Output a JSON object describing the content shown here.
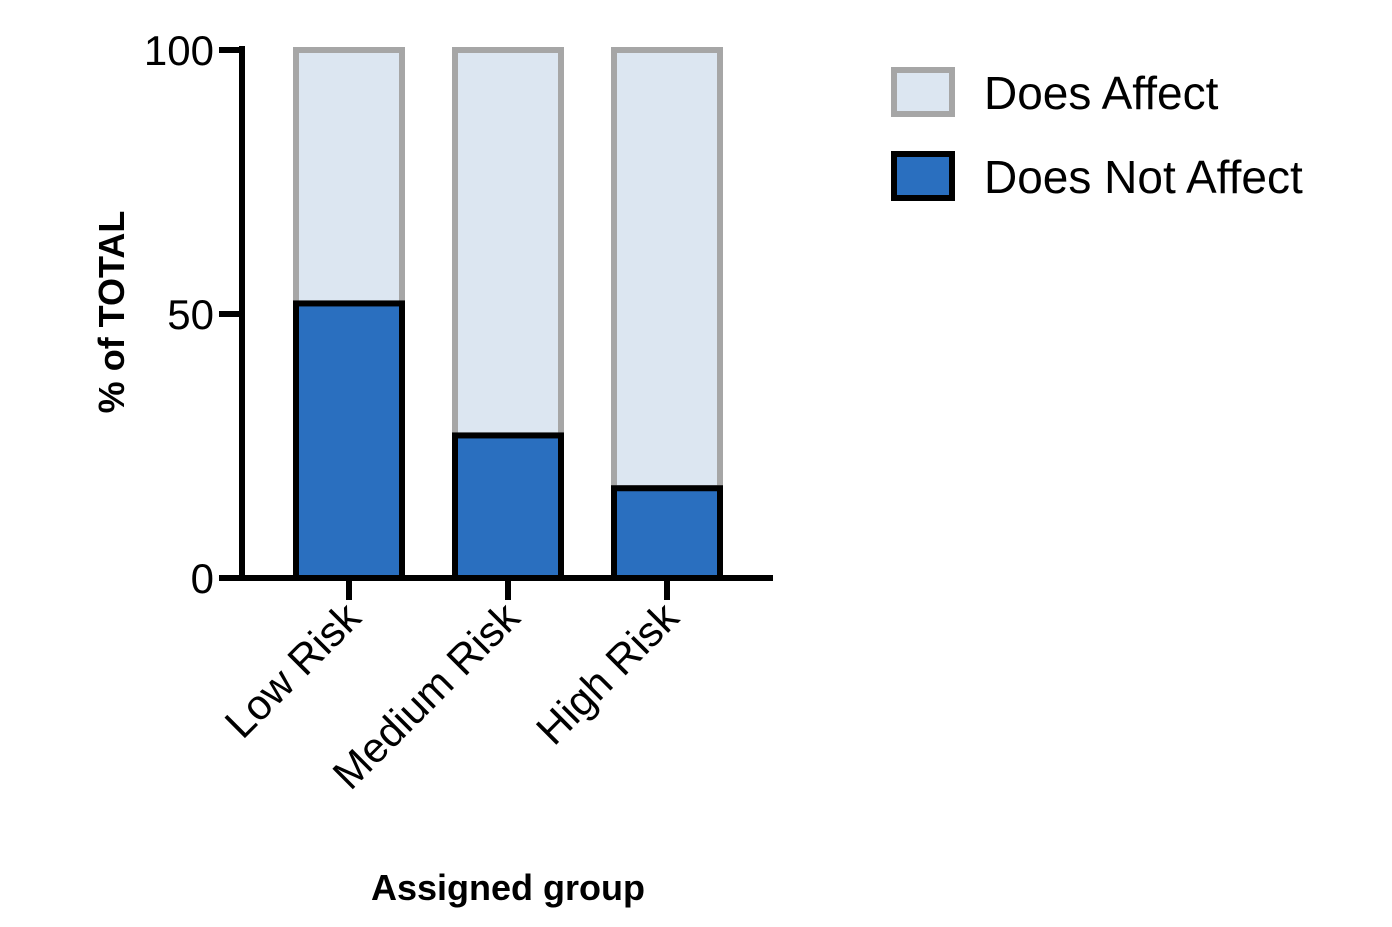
{
  "chart_data": {
    "type": "bar",
    "stacked": true,
    "categories": [
      "Low Risk",
      "Medium Risk",
      "High Risk"
    ],
    "series": [
      {
        "name": "Does Not Affect",
        "values": [
          52,
          27,
          17
        ],
        "color": "#2a6fbf",
        "stroke": "#000000"
      },
      {
        "name": "Does Affect",
        "values": [
          48,
          73,
          83
        ],
        "color": "#dce6f1",
        "stroke": "#a6a6a6"
      }
    ],
    "legend_order": [
      "Does Affect",
      "Does Not Affect"
    ],
    "ylabel": "% of TOTAL",
    "xlabel": "Assigned group",
    "ylim": [
      0,
      100
    ],
    "yticks": [
      0,
      50,
      100
    ],
    "legend_position": "top-right",
    "grid": false
  }
}
